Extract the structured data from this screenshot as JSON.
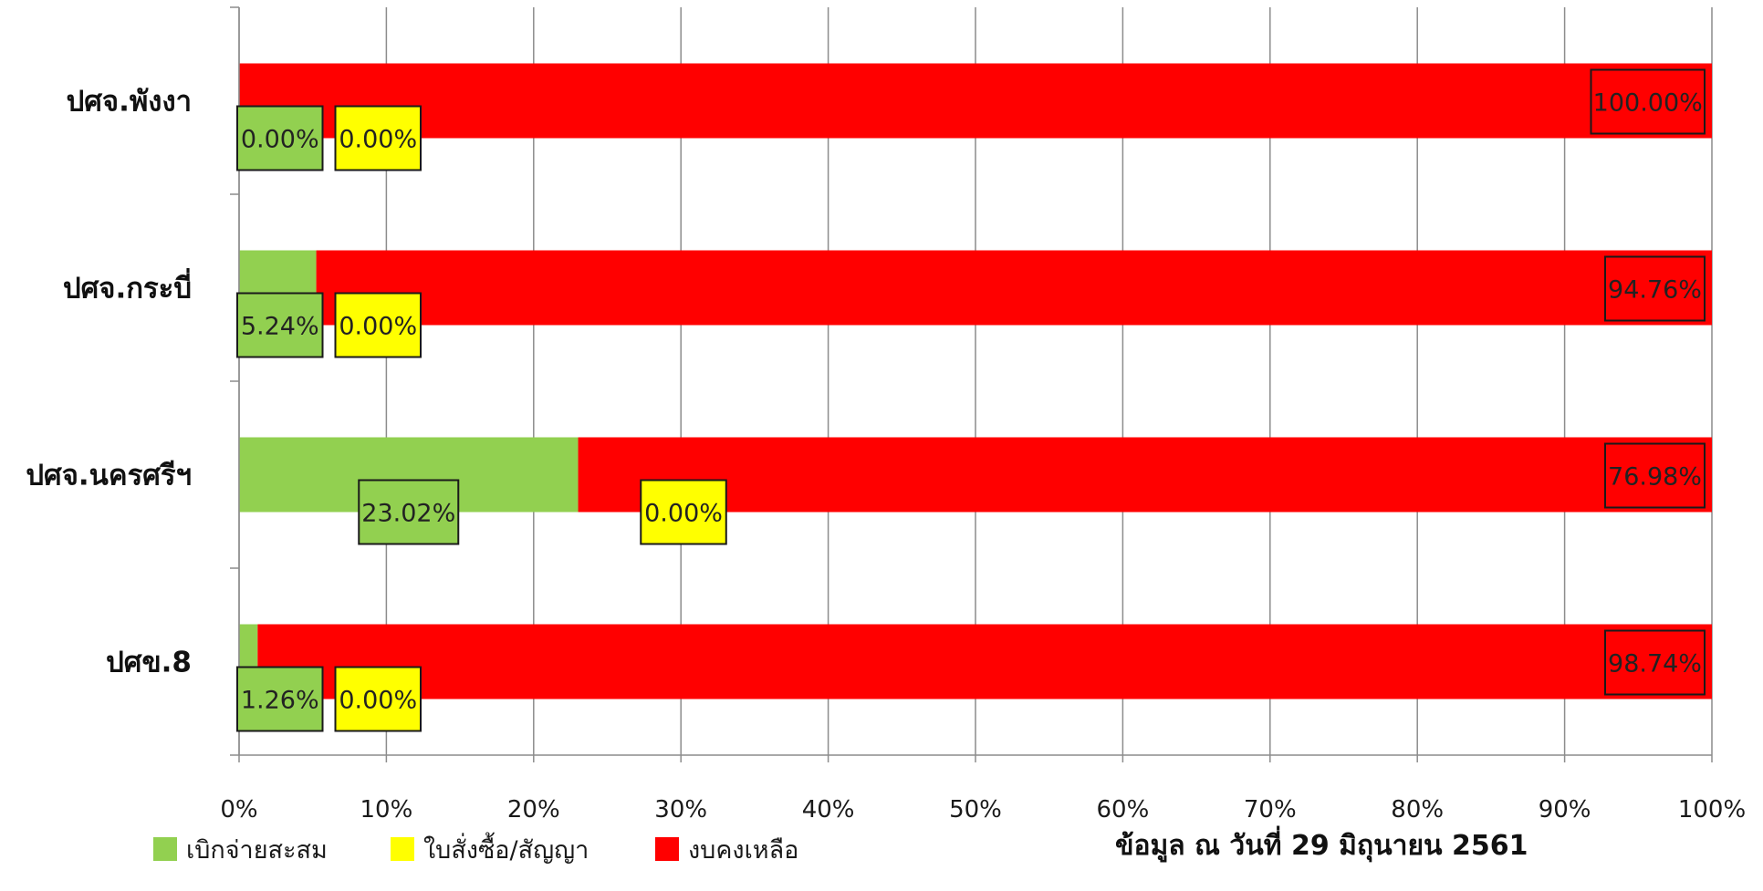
{
  "chart_data": {
    "type": "bar",
    "orientation": "horizontal",
    "stacked": "percent",
    "categories": [
      "ปศจ.พังงา",
      "ปศจ.กระบี่",
      "ปศจ.นครศรีฯ",
      "ปศข.8"
    ],
    "series": [
      {
        "name": "เบิกจ่ายสะสม",
        "color": "#92d050",
        "values": [
          0.0,
          5.24,
          23.02,
          1.26
        ],
        "labels": [
          "0.00%",
          "5.24%",
          "23.02%",
          "1.26%"
        ]
      },
      {
        "name": "ใบสั่งซื้อ/สัญญา",
        "color": "#ffff00",
        "values": [
          0.0,
          0.0,
          0.0,
          0.0
        ],
        "labels": [
          "0.00%",
          "0.00%",
          "0.00%",
          "0.00%"
        ]
      },
      {
        "name": "งบคงเหลือ",
        "color": "#ff0000",
        "values": [
          100.0,
          94.76,
          76.98,
          98.74
        ],
        "labels": [
          "100.00%",
          "94.76%",
          "76.98%",
          "98.74%"
        ]
      }
    ],
    "xlim": [
      0,
      100
    ],
    "x_ticks": [
      "0%",
      "10%",
      "20%",
      "30%",
      "40%",
      "50%",
      "60%",
      "70%",
      "80%",
      "90%",
      "100%"
    ],
    "grid": "vertical",
    "legend": "bottom-left",
    "note": "ข้อมูล ณ วันที่ 29 มิถุนายน 2561"
  }
}
